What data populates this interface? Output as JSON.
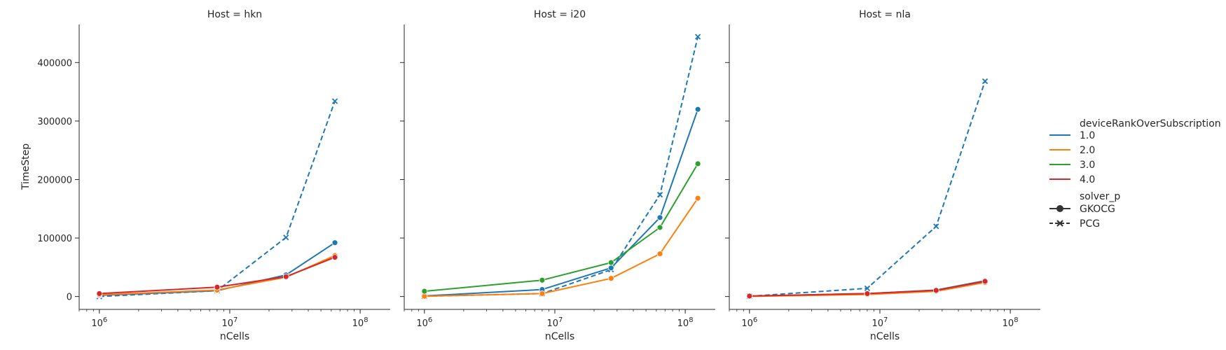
{
  "chart_data": {
    "type": "line",
    "xlabel": "nCells",
    "ylabel": "TimeStep",
    "xscale": "log",
    "xlim": [
      700000,
      170000000
    ],
    "ylim": [
      -22000,
      465000
    ],
    "x_tick_labels": [
      "10^6",
      "10^7",
      "10^8"
    ],
    "x_tick_values": [
      1000000,
      10000000,
      100000000
    ],
    "y_ticks": [
      "0",
      "100000",
      "200000",
      "300000",
      "400000"
    ],
    "y_tick_values": [
      0,
      100000,
      200000,
      300000,
      400000
    ],
    "colors": {
      "1.0": "#1f77b4",
      "2.0": "#ff7f0e",
      "3.0": "#2ca02c",
      "4.0": "#d62728"
    },
    "legend": {
      "placement": "right",
      "hue_title": "deviceRankOverSubscription",
      "hue_entries": [
        "1.0",
        "2.0",
        "3.0",
        "4.0"
      ],
      "style_title": "solver_p",
      "style_entries": [
        {
          "label": "GKOCG",
          "marker": "circle",
          "dash": "solid"
        },
        {
          "label": "PCG",
          "marker": "x",
          "dash": "dashed"
        }
      ]
    },
    "panels": [
      {
        "title": "Host = hkn",
        "series": [
          {
            "hue": "1.0",
            "solver": "PCG",
            "x": [
              1000000,
              8000000,
              27000000,
              64000000
            ],
            "y": [
              0,
              10000,
              101000,
              334000
            ]
          },
          {
            "hue": "1.0",
            "solver": "GKOCG",
            "x": [
              1000000,
              8000000,
              27000000,
              64000000
            ],
            "y": [
              2000,
              10000,
              37000,
              92000
            ]
          },
          {
            "hue": "2.0",
            "solver": "GKOCG",
            "x": [
              1000000,
              8000000,
              27000000,
              64000000
            ],
            "y": [
              3000,
              11000,
              33000,
              70000
            ]
          },
          {
            "hue": "4.0",
            "solver": "GKOCG",
            "x": [
              1000000,
              8000000,
              27000000,
              64000000
            ],
            "y": [
              5000,
              16000,
              34000,
              67000
            ]
          }
        ]
      },
      {
        "title": "Host = i20",
        "series": [
          {
            "hue": "1.0",
            "solver": "PCG",
            "x": [
              1000000,
              8000000,
              27000000,
              64000000,
              125000000
            ],
            "y": [
              500,
              5000,
              46000,
              174000,
              444000
            ]
          },
          {
            "hue": "1.0",
            "solver": "GKOCG",
            "x": [
              1000000,
              8000000,
              27000000,
              64000000,
              125000000
            ],
            "y": [
              1000,
              12000,
              49000,
              135000,
              320000
            ]
          },
          {
            "hue": "2.0",
            "solver": "GKOCG",
            "x": [
              1000000,
              8000000,
              27000000,
              64000000,
              125000000
            ],
            "y": [
              500,
              5000,
              31000,
              73000,
              168000
            ]
          },
          {
            "hue": "3.0",
            "solver": "GKOCG",
            "x": [
              1000000,
              8000000,
              27000000,
              64000000,
              125000000
            ],
            "y": [
              9000,
              28000,
              58000,
              118000,
              227000
            ]
          }
        ]
      },
      {
        "title": "Host = nla",
        "series": [
          {
            "hue": "1.0",
            "solver": "PCG",
            "x": [
              1000000,
              8000000,
              27000000,
              64000000
            ],
            "y": [
              500,
              14000,
              120000,
              368000
            ]
          },
          {
            "hue": "1.0",
            "solver": "GKOCG",
            "x": [
              1000000,
              8000000,
              27000000,
              64000000
            ],
            "y": [
              500,
              5000,
              11000,
              27000
            ]
          },
          {
            "hue": "2.0",
            "solver": "GKOCG",
            "x": [
              1000000,
              8000000,
              27000000,
              64000000
            ],
            "y": [
              300,
              3500,
              9000,
              24000
            ]
          },
          {
            "hue": "4.0",
            "solver": "GKOCG",
            "x": [
              1000000,
              8000000,
              27000000,
              64000000
            ],
            "y": [
              800,
              5000,
              10500,
              26000
            ]
          }
        ]
      }
    ]
  }
}
